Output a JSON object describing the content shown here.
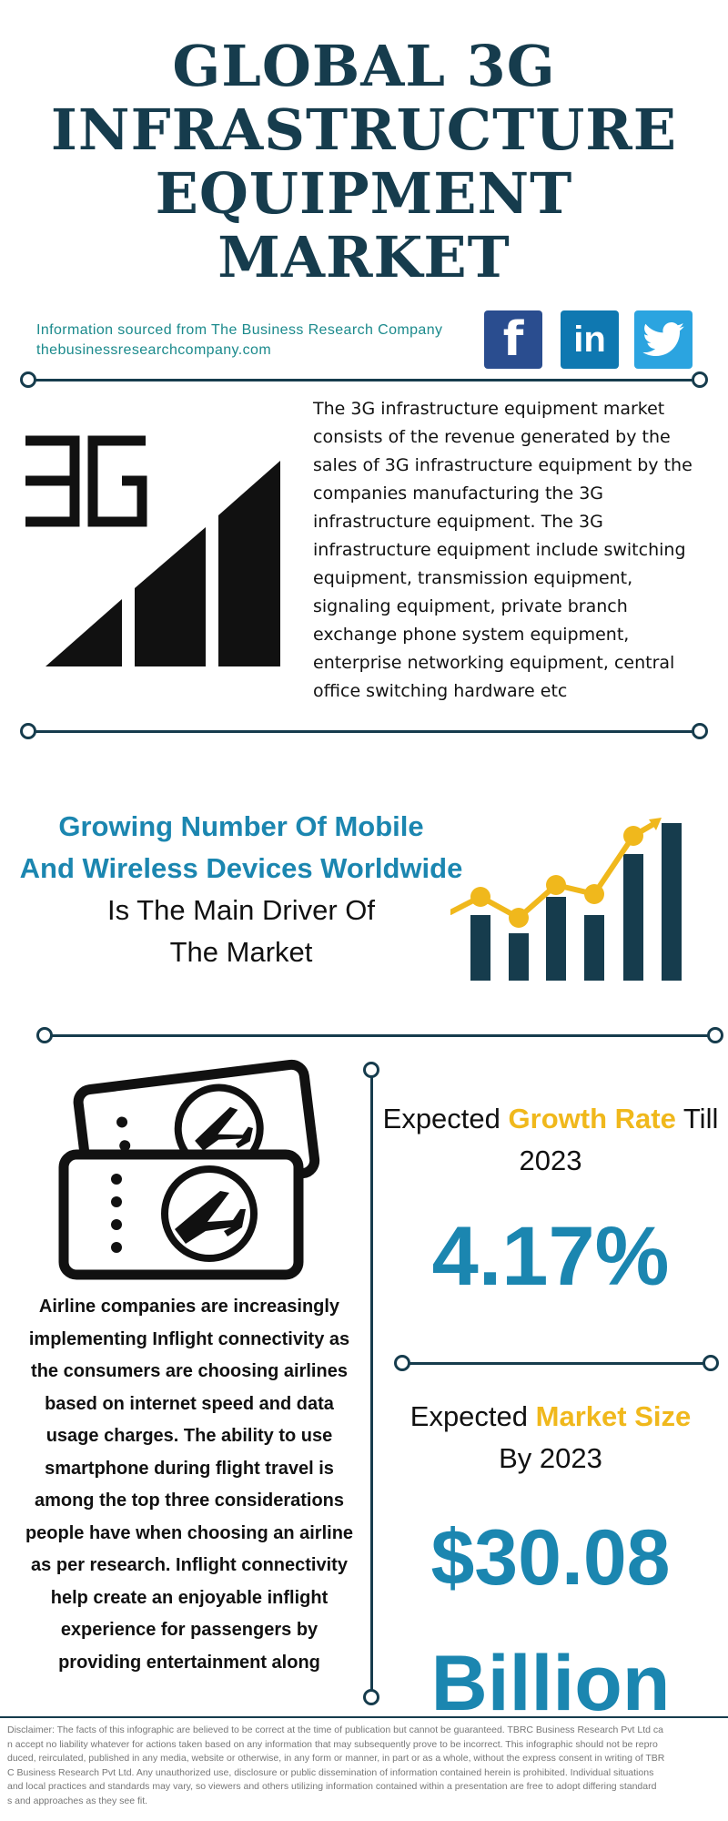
{
  "title_lines": [
    "GLOBAL 3G",
    "INFRASTRUCTURE",
    "EQUIPMENT",
    "MARKET"
  ],
  "source": {
    "line1": "Information sourced from The Business Research Company",
    "line2": "thebusinessresearchcompany.com"
  },
  "social": [
    {
      "name": "facebook",
      "glyph": "f"
    },
    {
      "name": "linkedin",
      "glyph": "in"
    },
    {
      "name": "twitter",
      "glyph": "bird"
    }
  ],
  "icon_3g_text": "3G",
  "description_lines": [
    "The 3G infrastructure equipment market",
    "consists of the revenue generated by the",
    "sales of 3G infrastructure equipment by the",
    "companies manufacturing the 3G",
    "infrastructure equipment. The 3G",
    "infrastructure equipment include switching",
    "equipment, transmission equipment,",
    "signaling equipment, private branch",
    "exchange phone system equipment,",
    "enterprise networking equipment, central",
    "office switching hardware etc"
  ],
  "driver": {
    "highlight_lines": [
      "Growing Number Of Mobile",
      "And Wireless Devices Worldwide"
    ],
    "normal_lines": [
      "Is The Main Driver Of",
      "The Market"
    ]
  },
  "airline_lines": [
    "Airline companies are increasingly",
    "implementing Inflight connectivity as",
    "the consumers are choosing airlines",
    "based on internet speed and data",
    "usage charges. The ability to use",
    "smartphone during flight travel is",
    "among the top three considerations",
    "people have when choosing an airline",
    "as per research. Inflight connectivity",
    "help create an enjoyable inflight",
    "experience for passengers by",
    "providing entertainment along"
  ],
  "growth": {
    "prefix": "Expected",
    "highlight": "Growth Rate",
    "suffix": "Till",
    "year_line": "2023",
    "value": "4.17%"
  },
  "market_size": {
    "prefix": "Expected",
    "highlight": "Market Size",
    "year_line": "By 2023",
    "value_line1": "$30.08",
    "value_line2": "Billion"
  },
  "disclaimer_lines": [
    "Disclaimer: The facts of this infographic are believed to be correct at the time of publication but cannot be guaranteed. TBRC Business Research Pvt Ltd ca",
    "n accept no liability whatever for actions taken based on any information that may subsequently prove to be incorrect. This infographic should not be repro",
    "duced, reirculated, published in any media, website or otherwise, in any form or manner, in part or as a whole, without the express consent in writing of TBR",
    "C Business Research Pvt Ltd. Any unauthorized use, disclosure or public dissemination of information contained herein is prohibited. Individual situations",
    "and local practices and standards may vary, so viewers and others utilizing information contained within a presentation are free to adopt differing standard",
    "s and approaches as they see fit."
  ],
  "colors": {
    "navy": "#163c4d",
    "blue": "#1b86b0",
    "yellow": "#f0b81c",
    "teal": "#1b8a8c"
  }
}
